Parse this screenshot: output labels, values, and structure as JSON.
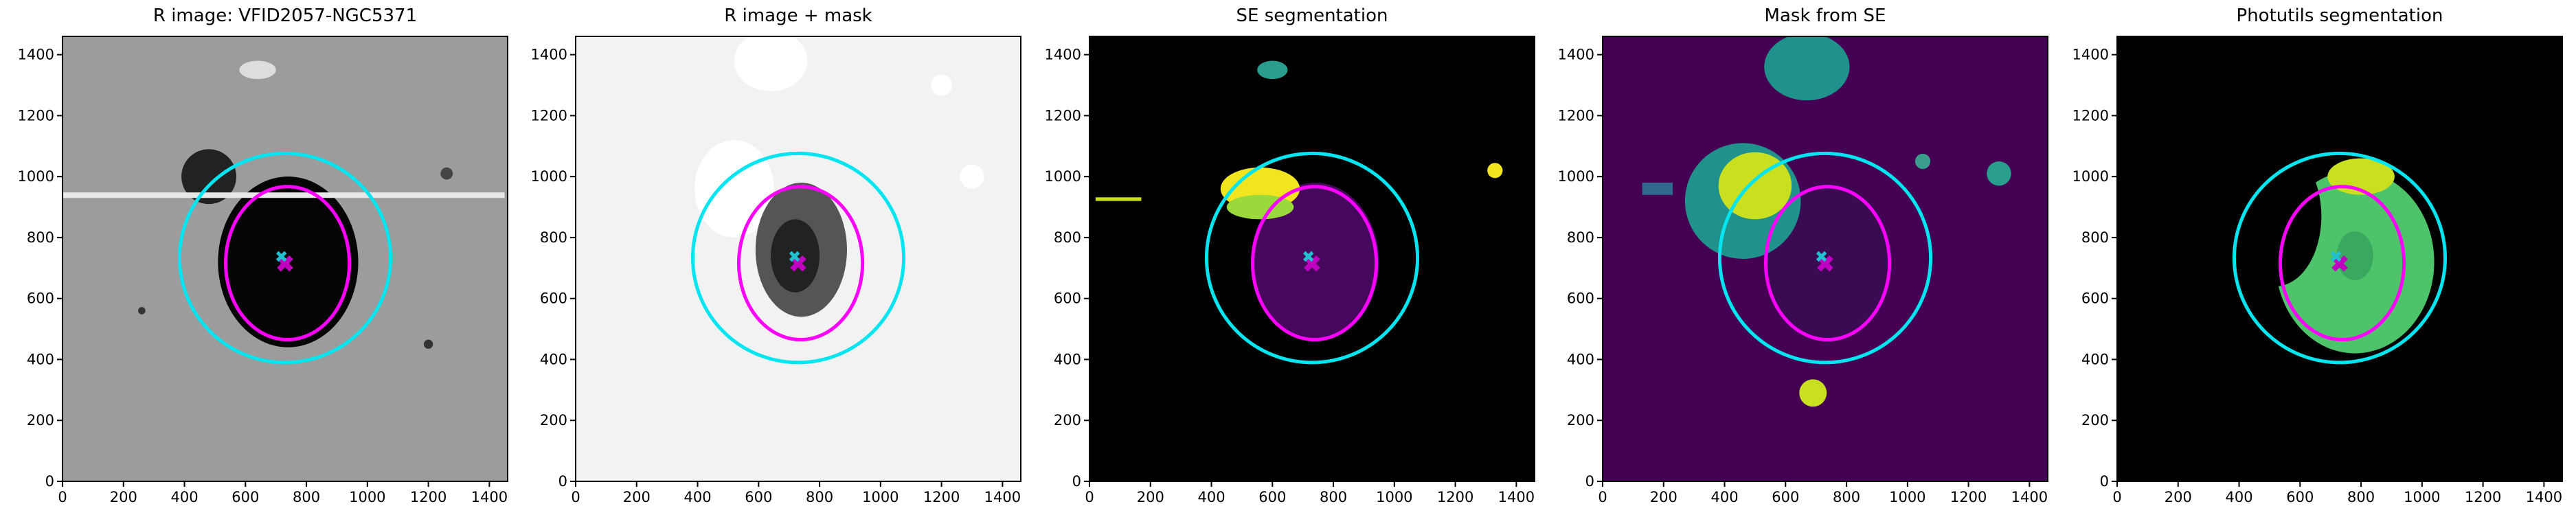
{
  "chart_data": [
    {
      "type": "image",
      "title": "R image: VFID2057-NGC5371",
      "background": "#9c9c9c",
      "xlim": [
        0,
        1460
      ],
      "ylim": [
        0,
        1460
      ],
      "xticks": [
        0,
        200,
        400,
        600,
        800,
        1000,
        1200,
        1400
      ],
      "yticks": [
        0,
        200,
        400,
        600,
        800,
        1000,
        1200,
        1400
      ]
    },
    {
      "type": "image",
      "title": "R image + mask",
      "background": "#f2f2f2",
      "xlim": [
        0,
        1460
      ],
      "ylim": [
        0,
        1460
      ],
      "xticks": [
        0,
        200,
        400,
        600,
        800,
        1000,
        1200,
        1400
      ],
      "yticks": [
        0,
        200,
        400,
        600,
        800,
        1000,
        1200,
        1400
      ]
    },
    {
      "type": "image",
      "title": "SE segmentation",
      "background": "#000000",
      "xlim": [
        0,
        1460
      ],
      "ylim": [
        0,
        1460
      ],
      "xticks": [
        0,
        200,
        400,
        600,
        800,
        1000,
        1200,
        1400
      ],
      "yticks": [
        0,
        200,
        400,
        600,
        800,
        1000,
        1200,
        1400
      ]
    },
    {
      "type": "image",
      "title": "Mask from SE",
      "background": "#440154",
      "xlim": [
        0,
        1460
      ],
      "ylim": [
        0,
        1460
      ],
      "xticks": [
        0,
        200,
        400,
        600,
        800,
        1000,
        1200,
        1400
      ],
      "yticks": [
        0,
        200,
        400,
        600,
        800,
        1000,
        1200,
        1400
      ]
    },
    {
      "type": "image",
      "title": "Photutils segmentation",
      "background": "#000000",
      "xlim": [
        0,
        1460
      ],
      "ylim": [
        0,
        1460
      ],
      "xticks": [
        0,
        200,
        400,
        600,
        800,
        1000,
        1200,
        1400
      ],
      "yticks": [
        0,
        200,
        400,
        600,
        800,
        1000,
        1200,
        1400
      ]
    }
  ]
}
